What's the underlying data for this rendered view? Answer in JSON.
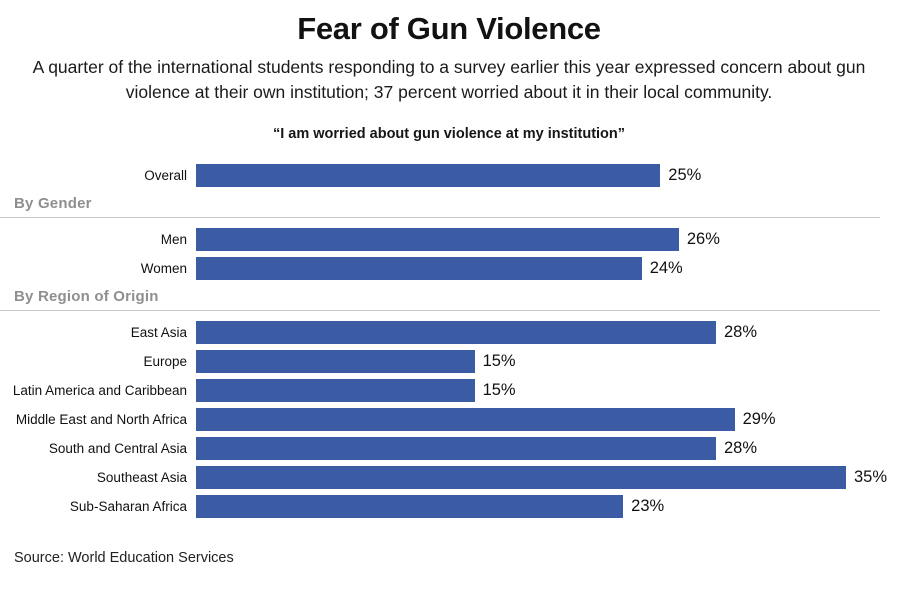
{
  "header": {
    "title": "Fear of Gun Violence",
    "subtitle": "A quarter of the international students responding to a survey earlier this year expressed concern about gun violence at their own institution; 37 percent worried about it in their local community."
  },
  "chart_data": {
    "type": "bar",
    "orientation": "horizontal",
    "title": "“I am worried about gun violence at my institution”",
    "xlabel": "",
    "ylabel": "",
    "xlim": [
      0,
      37.8
    ],
    "value_suffix": "%",
    "bar_color": "#3b5ca4",
    "grid": false,
    "legend": false,
    "groups": [
      {
        "header": "",
        "items": [
          {
            "label": "Overall",
            "value": 25
          }
        ]
      },
      {
        "header": "By Gender",
        "items": [
          {
            "label": "Men",
            "value": 26
          },
          {
            "label": "Women",
            "value": 24
          }
        ]
      },
      {
        "header": "By Region of Origin",
        "items": [
          {
            "label": "East Asia",
            "value": 28
          },
          {
            "label": "Europe",
            "value": 15
          },
          {
            "label": "Latin America and Caribbean",
            "value": 15
          },
          {
            "label": "Middle East and North Africa",
            "value": 29
          },
          {
            "label": "South and Central Asia",
            "value": 28
          },
          {
            "label": "Southeast Asia",
            "value": 35
          },
          {
            "label": "Sub-Saharan Africa",
            "value": 23
          }
        ]
      }
    ]
  },
  "footer": {
    "source": "Source: World Education Services"
  }
}
